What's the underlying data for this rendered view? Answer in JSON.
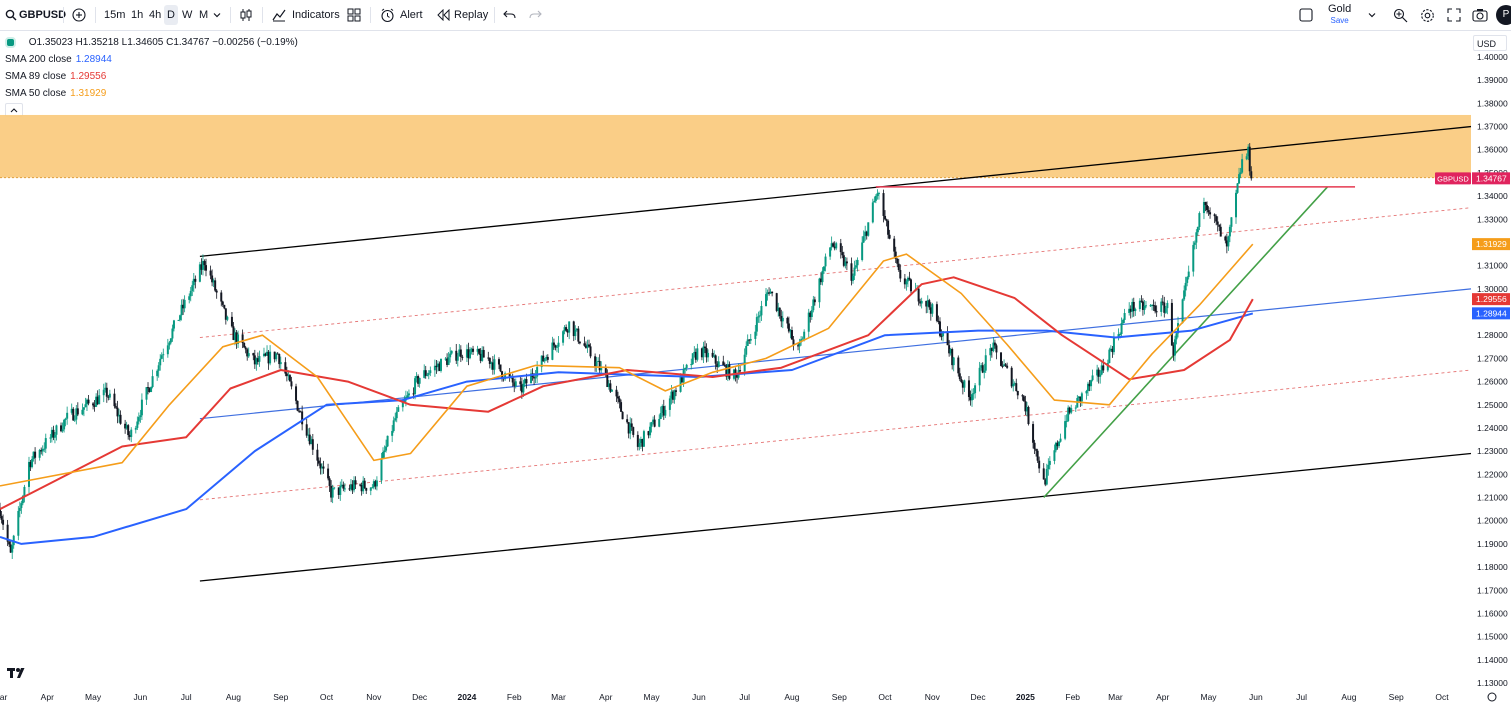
{
  "toolbar": {
    "symbol": "GBPUSD",
    "timeframes": [
      "15m",
      "1h",
      "4h",
      "D",
      "W",
      "M"
    ],
    "active_timeframe": "D",
    "indicators_label": "Indicators",
    "alert_label": "Alert",
    "replay_label": "Replay",
    "layout_name": "Gold",
    "layout_save": "Save",
    "avatar_letter": "P",
    "icons": [
      "search-icon",
      "add-symbol-icon",
      "chevron-down-icon",
      "bar-style-icon",
      "indicators-icon",
      "templates-icon",
      "alert-icon",
      "replay-icon",
      "undo-icon",
      "redo-icon",
      "layout-icon",
      "quick-search-icon",
      "settings-icon",
      "fullscreen-icon",
      "camera-icon"
    ]
  },
  "legend": {
    "ohlc": "O1.35023 H1.35218 L1.34605 C1.34767 −0.00256 (−0.19%)",
    "indicators": [
      {
        "label": "SMA 200 close",
        "value": "1.28944",
        "color": "#2962ff"
      },
      {
        "label": "SMA 89 close",
        "value": "1.29556",
        "color": "#e53935"
      },
      {
        "label": "SMA 50 close",
        "value": "1.31929",
        "color": "#f59d1a"
      }
    ]
  },
  "currency": "USD",
  "chart_data": {
    "type": "candlestick",
    "symbol": "GBPUSD",
    "interval": "D",
    "y_ticks": [
      "1.40000",
      "1.39000",
      "1.38000",
      "1.37000",
      "1.36000",
      "1.35000",
      "1.34000",
      "1.33000",
      "1.32000",
      "1.31000",
      "1.30000",
      "1.29000",
      "1.28000",
      "1.27000",
      "1.26000",
      "1.25000",
      "1.24000",
      "1.23000",
      "1.22000",
      "1.21000",
      "1.20000",
      "1.19000",
      "1.18000",
      "1.17000",
      "1.16000",
      "1.15000",
      "1.14000",
      "1.13000"
    ],
    "ylim": [
      1.13,
      1.4
    ],
    "x_ticks": [
      "Mar",
      "Apr",
      "May",
      "Jun",
      "Jul",
      "Aug",
      "Sep",
      "Oct",
      "Nov",
      "Dec",
      "2024",
      "Feb",
      "Mar",
      "Apr",
      "May",
      "Jun",
      "Jul",
      "Aug",
      "Sep",
      "Oct",
      "Nov",
      "Dec",
      "2025",
      "Feb",
      "Mar",
      "Apr",
      "May",
      "Jun",
      "Jul",
      "Aug",
      "Sep",
      "Oct"
    ],
    "x_range": [
      "2023-03-01",
      "2025-10-20"
    ],
    "price_path": [
      [
        "2023-03-01",
        1.205
      ],
      [
        "2023-03-08",
        1.185
      ],
      [
        "2023-03-20",
        1.225
      ],
      [
        "2023-04-15",
        1.245
      ],
      [
        "2023-05-10",
        1.255
      ],
      [
        "2023-05-25",
        1.236
      ],
      [
        "2023-06-15",
        1.272
      ],
      [
        "2023-07-13",
        1.312
      ],
      [
        "2023-07-30",
        1.282
      ],
      [
        "2023-08-15",
        1.268
      ],
      [
        "2023-08-30",
        1.272
      ],
      [
        "2023-09-20",
        1.236
      ],
      [
        "2023-10-04",
        1.212
      ],
      [
        "2023-10-20",
        1.215
      ],
      [
        "2023-11-01",
        1.215
      ],
      [
        "2023-11-15",
        1.244
      ],
      [
        "2023-12-01",
        1.262
      ],
      [
        "2023-12-28",
        1.273
      ],
      [
        "2024-01-15",
        1.27
      ],
      [
        "2024-02-05",
        1.256
      ],
      [
        "2024-03-08",
        1.285
      ],
      [
        "2024-04-01",
        1.262
      ],
      [
        "2024-04-22",
        1.232
      ],
      [
        "2024-05-08",
        1.247
      ],
      [
        "2024-06-01",
        1.274
      ],
      [
        "2024-06-25",
        1.262
      ],
      [
        "2024-07-17",
        1.3
      ],
      [
        "2024-08-05",
        1.273
      ],
      [
        "2024-08-27",
        1.32
      ],
      [
        "2024-09-10",
        1.305
      ],
      [
        "2024-09-26",
        1.342
      ],
      [
        "2024-10-10",
        1.306
      ],
      [
        "2024-10-31",
        1.292
      ],
      [
        "2024-11-14",
        1.27
      ],
      [
        "2024-11-25",
        1.253
      ],
      [
        "2024-12-10",
        1.275
      ],
      [
        "2024-12-31",
        1.252
      ],
      [
        "2025-01-13",
        1.216
      ],
      [
        "2025-01-28",
        1.245
      ],
      [
        "2025-02-20",
        1.265
      ],
      [
        "2025-03-10",
        1.292
      ],
      [
        "2025-04-04",
        1.292
      ],
      [
        "2025-04-08",
        1.273
      ],
      [
        "2025-04-28",
        1.34
      ],
      [
        "2025-05-13",
        1.317
      ],
      [
        "2025-05-23",
        1.355
      ],
      [
        "2025-05-27",
        1.3585
      ],
      [
        "2025-05-29",
        1.3477
      ]
    ],
    "sma50": [
      [
        "2023-03-01",
        1.215
      ],
      [
        "2023-05-20",
        1.225
      ],
      [
        "2023-06-20",
        1.25
      ],
      [
        "2023-07-25",
        1.275
      ],
      [
        "2023-08-20",
        1.28
      ],
      [
        "2023-09-25",
        1.262
      ],
      [
        "2023-11-01",
        1.226
      ],
      [
        "2023-11-25",
        1.229
      ],
      [
        "2024-01-01",
        1.258
      ],
      [
        "2024-02-15",
        1.267
      ],
      [
        "2024-04-10",
        1.266
      ],
      [
        "2024-05-10",
        1.256
      ],
      [
        "2024-06-10",
        1.264
      ],
      [
        "2024-07-15",
        1.27
      ],
      [
        "2024-08-25",
        1.283
      ],
      [
        "2024-09-30",
        1.312
      ],
      [
        "2024-10-15",
        1.315
      ],
      [
        "2024-11-20",
        1.298
      ],
      [
        "2024-12-20",
        1.276
      ],
      [
        "2025-01-20",
        1.252
      ],
      [
        "2025-02-25",
        1.25
      ],
      [
        "2025-03-25",
        1.272
      ],
      [
        "2025-04-25",
        1.293
      ],
      [
        "2025-05-30",
        1.3193
      ]
    ],
    "sma89": [
      [
        "2023-03-01",
        1.205
      ],
      [
        "2023-05-20",
        1.232
      ],
      [
        "2023-07-01",
        1.236
      ],
      [
        "2023-07-30",
        1.257
      ],
      [
        "2023-09-01",
        1.265
      ],
      [
        "2023-10-15",
        1.26
      ],
      [
        "2023-11-25",
        1.25
      ],
      [
        "2024-01-15",
        1.247
      ],
      [
        "2024-02-20",
        1.258
      ],
      [
        "2024-04-15",
        1.265
      ],
      [
        "2024-06-10",
        1.262
      ],
      [
        "2024-07-25",
        1.266
      ],
      [
        "2024-09-20",
        1.28
      ],
      [
        "2024-10-25",
        1.302
      ],
      [
        "2024-11-15",
        1.305
      ],
      [
        "2024-12-25",
        1.296
      ],
      [
        "2025-01-25",
        1.28
      ],
      [
        "2025-03-10",
        1.261
      ],
      [
        "2025-04-15",
        1.265
      ],
      [
        "2025-05-15",
        1.278
      ],
      [
        "2025-05-30",
        1.2956
      ]
    ],
    "sma200": [
      [
        "2023-03-01",
        1.193
      ],
      [
        "2023-03-15",
        1.19
      ],
      [
        "2023-05-01",
        1.193
      ],
      [
        "2023-07-01",
        1.205
      ],
      [
        "2023-08-15",
        1.23
      ],
      [
        "2023-10-01",
        1.25
      ],
      [
        "2023-11-20",
        1.252
      ],
      [
        "2024-01-01",
        1.26
      ],
      [
        "2024-03-01",
        1.264
      ],
      [
        "2024-06-01",
        1.262
      ],
      [
        "2024-08-01",
        1.265
      ],
      [
        "2024-10-01",
        1.28
      ],
      [
        "2024-12-01",
        1.282
      ],
      [
        "2025-01-15",
        1.282
      ],
      [
        "2025-03-01",
        1.279
      ],
      [
        "2025-04-20",
        1.282
      ],
      [
        "2025-05-30",
        1.2894
      ]
    ],
    "resistance_zone": [
      1.348,
      1.375
    ],
    "channel": {
      "upper": [
        [
          "2023-07-10",
          1.314
        ],
        [
          "2025-10-20",
          1.37
        ]
      ],
      "lower": [
        [
          "2023-07-10",
          1.174
        ],
        [
          "2025-10-20",
          1.229
        ]
      ],
      "mid_upper": [
        [
          "2023-07-10",
          1.279
        ],
        [
          "2025-10-20",
          1.335
        ]
      ],
      "mid_lower": [
        [
          "2023-07-10",
          1.209
        ],
        [
          "2025-10-20",
          1.265
        ]
      ]
    },
    "horizontal_line": {
      "value": 1.344,
      "from": "2024-09-25",
      "to": "2025-08-05"
    },
    "blue_trendline": [
      [
        "2023-07-10",
        1.244
      ],
      [
        "2025-10-20",
        1.3
      ]
    ],
    "green_trendline": [
      [
        "2025-01-13",
        1.21
      ],
      [
        "2025-07-18",
        1.344
      ]
    ],
    "price_labels": [
      {
        "text": "1.34767",
        "value": 1.34767,
        "color": "#e0245e",
        "tag": "GBPUSD"
      },
      {
        "text": "1.31929",
        "value": 1.31929,
        "color": "#f59d1a"
      },
      {
        "text": "1.29556",
        "value": 1.29556,
        "color": "#e53935"
      },
      {
        "text": "1.28944",
        "value": 1.28944,
        "color": "#2962ff"
      }
    ],
    "colors": {
      "up": "#089981",
      "down": "#131722",
      "zone": "#f9c97a",
      "channel": "#000000",
      "hline": "#e53950",
      "green": "#43a047",
      "blue_line": "#3f6fe0",
      "dashed": "#e57373"
    }
  }
}
